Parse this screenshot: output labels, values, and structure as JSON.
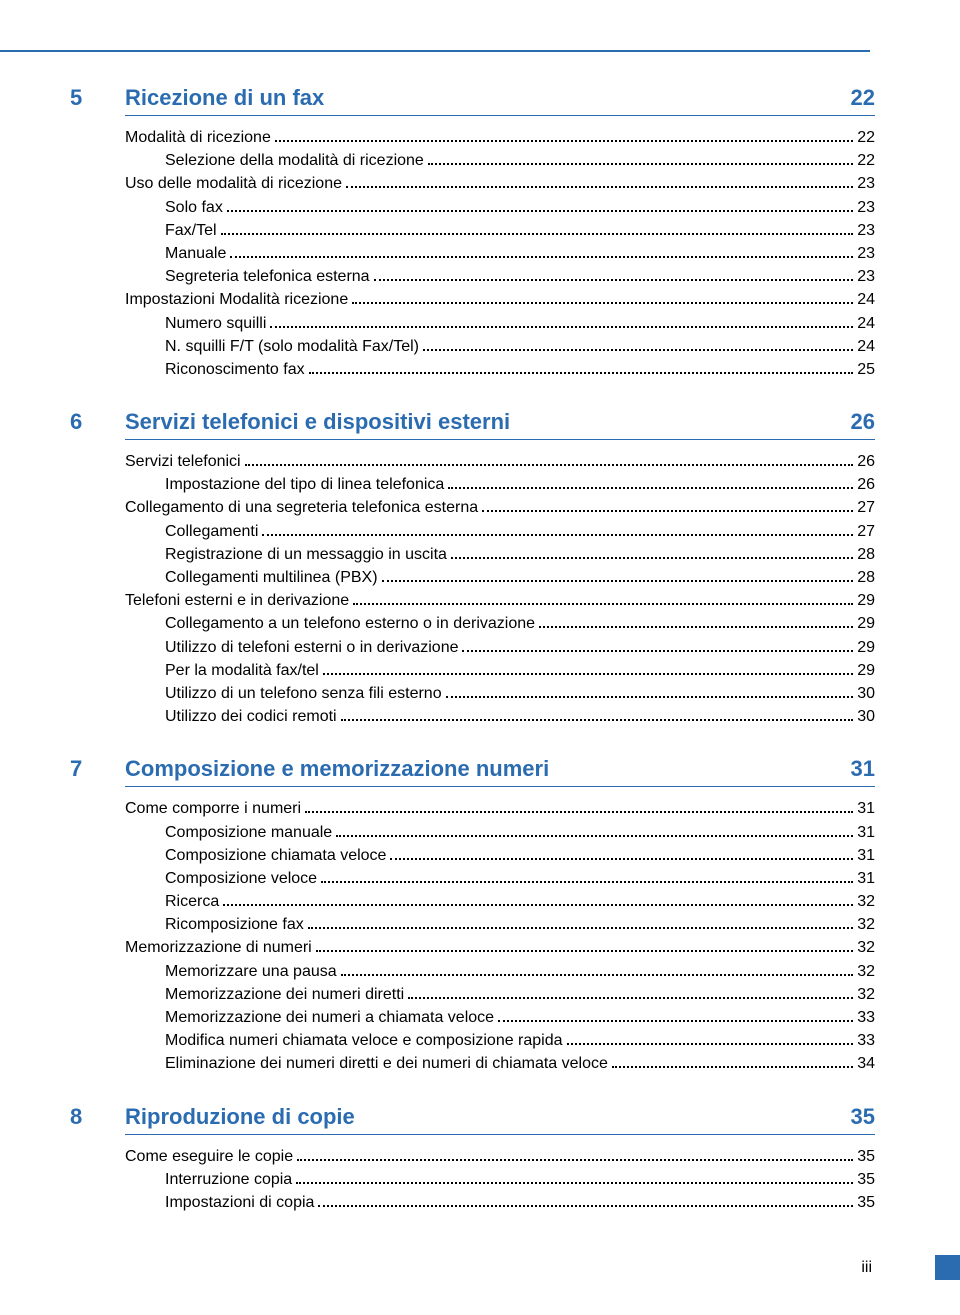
{
  "colors": {
    "accent": "#2b6cb0",
    "text": "#000000",
    "background": "#ffffff"
  },
  "typography": {
    "heading_fontsize": 22,
    "body_fontsize": 16,
    "font_family": "Arial"
  },
  "page_number": "iii",
  "sections": [
    {
      "num": "5",
      "title": "Ricezione di un fax",
      "page": "22",
      "entries": [
        {
          "level": 1,
          "label": "Modalità di ricezione",
          "page": "22"
        },
        {
          "level": 2,
          "label": "Selezione della modalità di ricezione",
          "page": "22"
        },
        {
          "level": 1,
          "label": "Uso delle modalità di ricezione",
          "page": "23"
        },
        {
          "level": 2,
          "label": "Solo fax",
          "page": "23"
        },
        {
          "level": 2,
          "label": "Fax/Tel",
          "page": "23"
        },
        {
          "level": 2,
          "label": "Manuale",
          "page": "23"
        },
        {
          "level": 2,
          "label": "Segreteria telefonica esterna",
          "page": "23"
        },
        {
          "level": 1,
          "label": "Impostazioni Modalità ricezione",
          "page": "24"
        },
        {
          "level": 2,
          "label": "Numero squilli",
          "page": "24"
        },
        {
          "level": 2,
          "label": "N. squilli F/T (solo modalità Fax/Tel)",
          "page": "24"
        },
        {
          "level": 2,
          "label": "Riconoscimento fax",
          "page": "25"
        }
      ]
    },
    {
      "num": "6",
      "title": "Servizi telefonici e dispositivi esterni",
      "page": "26",
      "entries": [
        {
          "level": 1,
          "label": "Servizi telefonici",
          "page": "26"
        },
        {
          "level": 2,
          "label": "Impostazione del tipo di linea telefonica",
          "page": "26"
        },
        {
          "level": 1,
          "label": "Collegamento di una segreteria telefonica esterna",
          "page": "27"
        },
        {
          "level": 2,
          "label": "Collegamenti",
          "page": "27"
        },
        {
          "level": 2,
          "label": "Registrazione di un messaggio in uscita",
          "page": "28"
        },
        {
          "level": 2,
          "label": "Collegamenti multilinea (PBX)",
          "page": "28"
        },
        {
          "level": 1,
          "label": "Telefoni esterni e in derivazione",
          "page": "29"
        },
        {
          "level": 2,
          "label": "Collegamento a un telefono esterno o in derivazione",
          "page": "29"
        },
        {
          "level": 2,
          "label": "Utilizzo di telefoni esterni o in derivazione",
          "page": "29"
        },
        {
          "level": 2,
          "label": "Per la modalità fax/tel",
          "page": "29"
        },
        {
          "level": 2,
          "label": "Utilizzo di un telefono senza fili esterno",
          "page": "30"
        },
        {
          "level": 2,
          "label": "Utilizzo dei codici remoti",
          "page": "30"
        }
      ]
    },
    {
      "num": "7",
      "title": "Composizione e memorizzazione numeri",
      "page": "31",
      "entries": [
        {
          "level": 1,
          "label": "Come comporre i numeri",
          "page": "31"
        },
        {
          "level": 2,
          "label": "Composizione manuale",
          "page": "31"
        },
        {
          "level": 2,
          "label": "Composizione chiamata veloce",
          "page": "31"
        },
        {
          "level": 2,
          "label": "Composizione veloce",
          "page": "31"
        },
        {
          "level": 2,
          "label": "Ricerca",
          "page": "32"
        },
        {
          "level": 2,
          "label": "Ricomposizione fax",
          "page": "32"
        },
        {
          "level": 1,
          "label": "Memorizzazione di numeri",
          "page": "32"
        },
        {
          "level": 2,
          "label": "Memorizzare una pausa",
          "page": "32"
        },
        {
          "level": 2,
          "label": "Memorizzazione dei numeri diretti",
          "page": "32"
        },
        {
          "level": 2,
          "label": "Memorizzazione dei numeri a chiamata veloce",
          "page": "33"
        },
        {
          "level": 2,
          "label": "Modifica numeri chiamata veloce e composizione rapida",
          "page": "33"
        },
        {
          "level": 2,
          "label": "Eliminazione dei numeri diretti e dei numeri di chiamata veloce",
          "page": "34"
        }
      ]
    },
    {
      "num": "8",
      "title": "Riproduzione di copie",
      "page": "35",
      "entries": [
        {
          "level": 1,
          "label": "Come eseguire le copie",
          "page": "35"
        },
        {
          "level": 2,
          "label": "Interruzione copia",
          "page": "35"
        },
        {
          "level": 2,
          "label": "Impostazioni di copia",
          "page": "35"
        }
      ]
    }
  ]
}
